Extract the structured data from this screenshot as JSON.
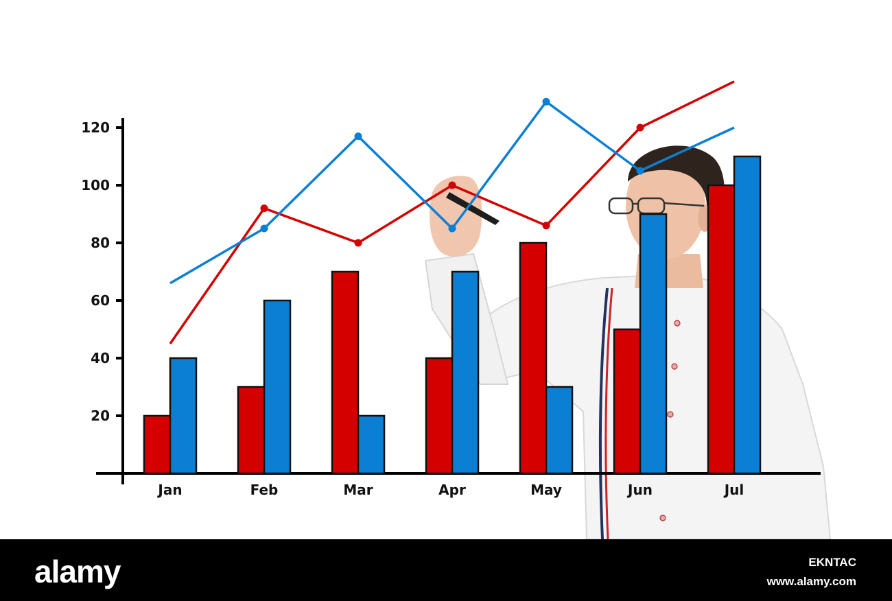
{
  "chart_data": {
    "type": "bar",
    "title": "",
    "xlabel": "",
    "ylabel": "",
    "categories": [
      "Jan",
      "Feb",
      "Mar",
      "Apr",
      "May",
      "Jun",
      "Jul"
    ],
    "y_ticks": [
      "20",
      "40",
      "60",
      "80",
      "100",
      "120"
    ],
    "ylim": [
      0,
      120
    ],
    "grid": false,
    "series": [
      {
        "type": "bar",
        "color": "#d40000",
        "values": [
          20,
          30,
          70,
          40,
          80,
          50,
          100
        ]
      },
      {
        "type": "bar",
        "color": "#0a7fd4",
        "values": [
          40,
          60,
          20,
          70,
          30,
          90,
          110
        ]
      },
      {
        "type": "line",
        "color": "#d40000",
        "values": [
          45,
          92,
          80,
          100,
          86,
          120,
          136
        ]
      },
      {
        "type": "line",
        "color": "#0a7fd4",
        "values": [
          66,
          85,
          117,
          85,
          129,
          105,
          120
        ]
      }
    ]
  },
  "watermark": {
    "logo": "alamy",
    "image_id": "EKNTAC",
    "website": "www.alamy.com"
  }
}
